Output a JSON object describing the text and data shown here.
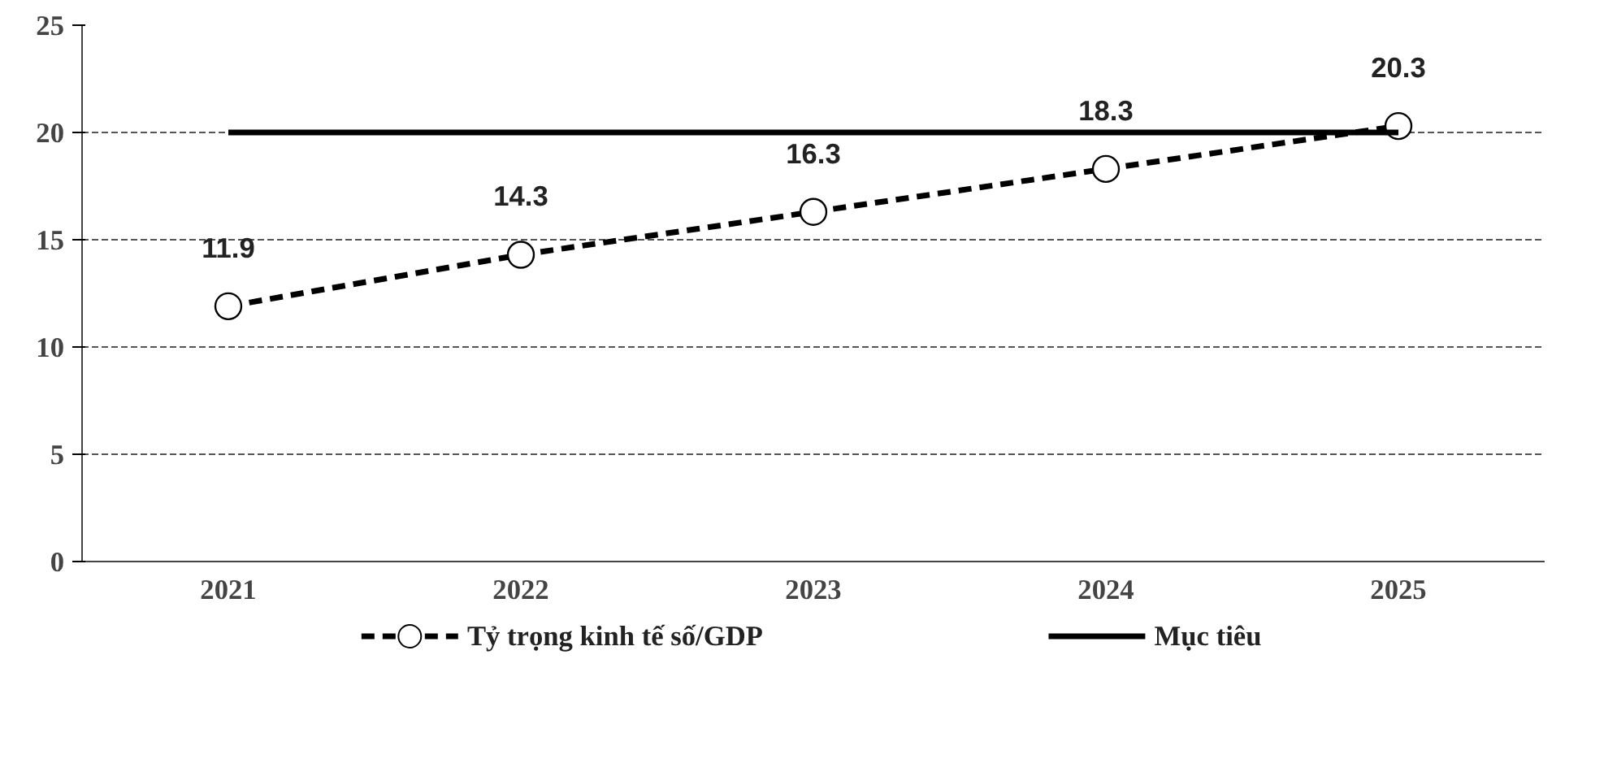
{
  "chart_data": {
    "type": "line",
    "categories": [
      "2021",
      "2022",
      "2023",
      "2024",
      "2025"
    ],
    "series": [
      {
        "name": "Tỷ trọng kinh tế số/GDP",
        "color": "#000000",
        "values": [
          11.9,
          14.3,
          16.3,
          18.3,
          20.3
        ],
        "line_style": "dashed",
        "marker": "circle",
        "value_labels": [
          "11.9",
          "14.3",
          "16.3",
          "18.3",
          "20.3"
        ]
      },
      {
        "name": "Mục tiêu",
        "color": "#000000",
        "values": [
          20,
          20,
          20,
          20,
          20
        ],
        "line_style": "solid",
        "marker": "none"
      }
    ],
    "ylim": [
      0,
      25
    ],
    "yticks": [
      0,
      5,
      10,
      15,
      20,
      25
    ],
    "grid": "y",
    "legend": "bottom"
  }
}
